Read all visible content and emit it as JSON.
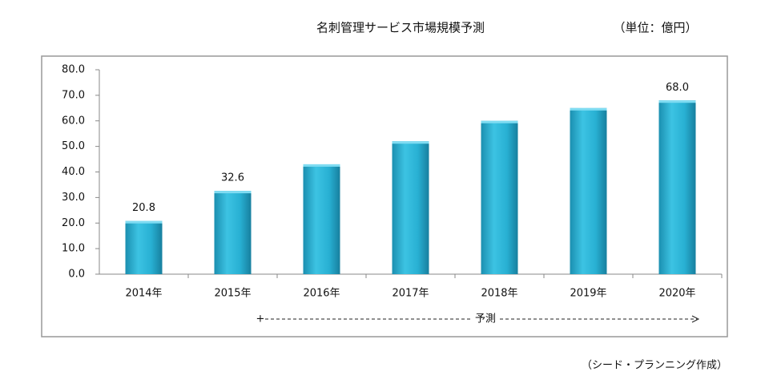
{
  "chart_data": {
    "type": "bar",
    "title": "名刺管理サービス市場規模予測",
    "unit": "（単位：億円）",
    "source": "（シード・プランニング作成）",
    "annotation": "予測",
    "categories": [
      "2014年",
      "2015年",
      "2016年",
      "2017年",
      "2018年",
      "2019年",
      "2020年"
    ],
    "values": [
      20.8,
      32.6,
      43,
      52,
      60,
      65,
      68.0
    ],
    "value_labels": [
      "20.8",
      "32.6",
      null,
      null,
      null,
      null,
      "68.0"
    ],
    "color": "#22a9cc",
    "ylim": [
      0,
      80
    ],
    "yticks": [
      {
        "value": 0,
        "label": "0.0"
      },
      {
        "value": 10,
        "label": "10.0"
      },
      {
        "value": 20,
        "label": "20.0"
      },
      {
        "value": 30,
        "label": "30.0"
      },
      {
        "value": 40,
        "label": "40.0"
      },
      {
        "value": 50,
        "label": "50.0"
      },
      {
        "value": 60,
        "label": "60.0"
      },
      {
        "value": 70,
        "label": "70.0"
      },
      {
        "value": 80,
        "label": "80.0"
      }
    ]
  }
}
